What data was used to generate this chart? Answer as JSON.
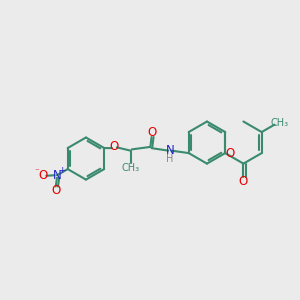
{
  "bg_color": "#ebebeb",
  "bond_color": "#3a8a6e",
  "bond_width": 1.5,
  "atom_colors": {
    "O": "#e60000",
    "N": "#2222cc",
    "H": "#888888",
    "C": "#3a8a6e"
  },
  "font_size": 8.5,
  "font_size_small": 7.0,
  "font_size_tiny": 6.5
}
